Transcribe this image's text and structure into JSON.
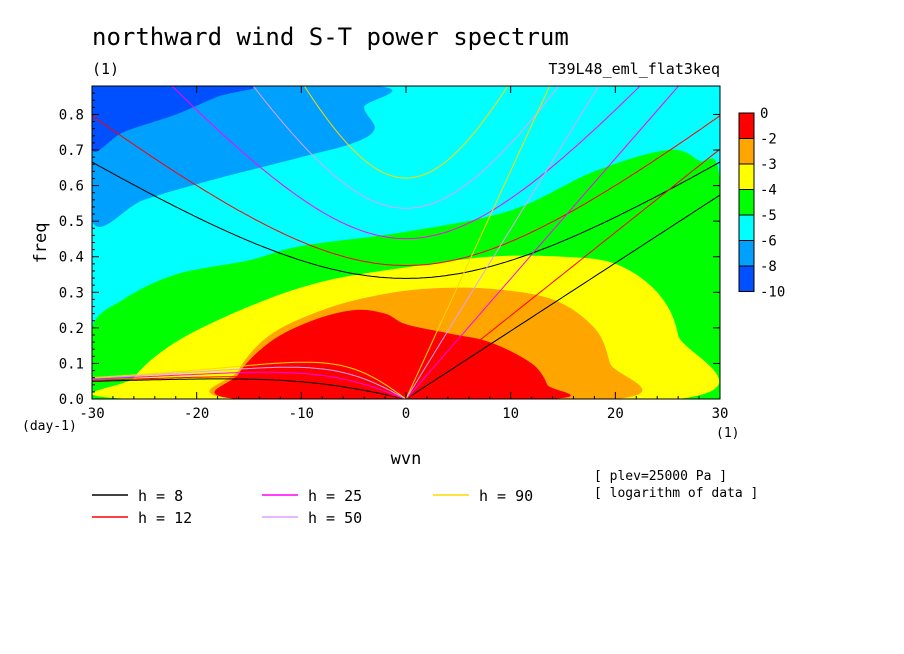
{
  "chart_data": {
    "type": "heatmap",
    "title": "northward wind S-T power spectrum",
    "subtitle_left": "(1)",
    "subtitle_right": "T39L48_eml_flat3keq",
    "xlabel": "wvn",
    "ylabel": "freq",
    "x_unit": "(1)",
    "y_unit": "(day-1)",
    "xlim": [
      -30,
      30
    ],
    "ylim": [
      0,
      0.88
    ],
    "x_ticks": [
      -30,
      -20,
      -10,
      0,
      10,
      20,
      30
    ],
    "y_ticks": [
      0.0,
      0.1,
      0.2,
      0.3,
      0.4,
      0.5,
      0.6,
      0.7,
      0.8
    ],
    "x_tick_labels": [
      "-30",
      "-20",
      "-10",
      "0",
      "10",
      "20",
      "30"
    ],
    "y_tick_labels": [
      "0.0",
      "0.1",
      "0.2",
      "0.3",
      "0.4",
      "0.5",
      "0.6",
      "0.7",
      "0.8"
    ],
    "colorbar": {
      "tick_labels": [
        "0",
        "-2",
        "-3",
        "-4",
        "-5",
        "-6",
        "-8",
        "-10"
      ],
      "colors": [
        "#ff0000",
        "#ffa500",
        "#ffff00",
        "#00ff00",
        "#00ffff",
        "#00a0ff",
        "#0050ff"
      ]
    },
    "field_regions": [
      {
        "level": "-6 to -8",
        "color": "#00a0ff",
        "points": [
          [
            -30,
            0.88
          ],
          [
            -30,
            0.5
          ],
          [
            -25,
            0.56
          ],
          [
            -18,
            0.62
          ],
          [
            -10,
            0.68
          ],
          [
            -5,
            0.72
          ],
          [
            -3,
            0.76
          ],
          [
            -4,
            0.82
          ],
          [
            -3,
            0.88
          ]
        ]
      },
      {
        "level": "-8 to -10",
        "color": "#0050ff",
        "points": [
          [
            -30,
            0.88
          ],
          [
            -30,
            0.7
          ],
          [
            -27,
            0.75
          ],
          [
            -22,
            0.8
          ],
          [
            -18,
            0.85
          ],
          [
            -15,
            0.88
          ]
        ]
      },
      {
        "level": "-5 to -6",
        "color": "#00ff00",
        "points": [
          [
            -30,
            0
          ],
          [
            -30,
            0.2
          ],
          [
            -27,
            0.28
          ],
          [
            -22,
            0.35
          ],
          [
            -15,
            0.39
          ],
          [
            -10,
            0.43
          ],
          [
            0,
            0.47
          ],
          [
            10,
            0.53
          ],
          [
            18,
            0.64
          ],
          [
            25,
            0.7
          ],
          [
            28,
            0.67
          ],
          [
            30,
            0.61
          ],
          [
            30,
            0
          ]
        ]
      },
      {
        "level": "-4 to -5",
        "color": "#ffff00",
        "points": [
          [
            -26,
            0
          ],
          [
            -26,
            0.06
          ],
          [
            -22,
            0.16
          ],
          [
            -15,
            0.26
          ],
          [
            -8,
            0.33
          ],
          [
            0,
            0.37
          ],
          [
            8,
            0.4
          ],
          [
            15,
            0.4
          ],
          [
            20,
            0.38
          ],
          [
            24,
            0.3
          ],
          [
            26,
            0.18
          ],
          [
            26,
            0
          ]
        ]
      },
      {
        "level": "-3 to -4",
        "color": "#ffa500",
        "points": [
          [
            -16,
            0
          ],
          [
            -16,
            0.08
          ],
          [
            -13,
            0.18
          ],
          [
            -8,
            0.25
          ],
          [
            -3,
            0.29
          ],
          [
            2,
            0.31
          ],
          [
            8,
            0.31
          ],
          [
            14,
            0.28
          ],
          [
            18,
            0.2
          ],
          [
            19.5,
            0.1
          ],
          [
            20,
            0
          ]
        ]
      },
      {
        "level": "-2 to -3",
        "color": "#ff0000",
        "points": [
          [
            -16,
            0
          ],
          [
            -16,
            0.07
          ],
          [
            -13,
            0.16
          ],
          [
            -9,
            0.22
          ],
          [
            -5,
            0.25
          ],
          [
            -2,
            0.24
          ],
          [
            0,
            0.21
          ],
          [
            4,
            0.185
          ],
          [
            8,
            0.16
          ],
          [
            12,
            0.1
          ],
          [
            13.5,
            0.04
          ],
          [
            13.5,
            0
          ]
        ]
      }
    ],
    "series": [
      {
        "name": "h = 8",
        "color": "#000000"
      },
      {
        "name": "h = 12",
        "color": "#ff0000"
      },
      {
        "name": "h = 25",
        "color": "#ff00ff"
      },
      {
        "name": "h = 50",
        "color": "#e0a0ff"
      },
      {
        "name": "h = 90",
        "color": "#ffd700"
      }
    ],
    "annotations": [
      "[ plev=25000 Pa ]",
      "[ logarithm of data ]"
    ]
  }
}
